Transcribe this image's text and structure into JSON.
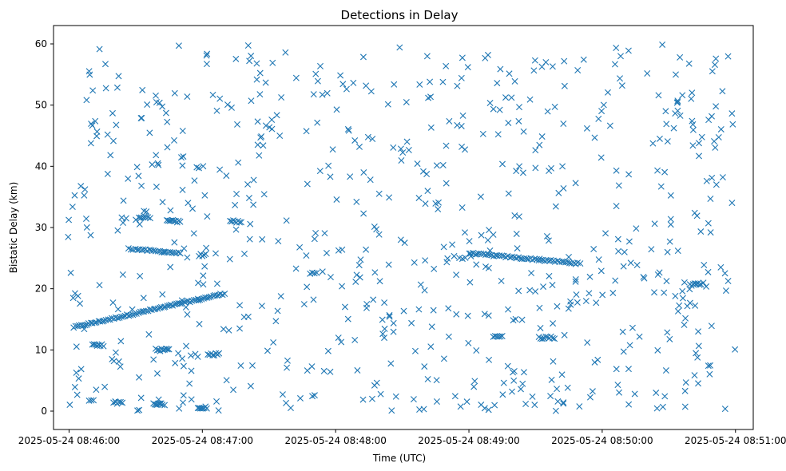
{
  "chart_data": {
    "type": "scatter",
    "title": "Detections in Delay",
    "xlabel": "Time (UTC)",
    "ylabel": "Bistatic Delay (km)",
    "marker": "x",
    "color": "#1f77b4",
    "grid": false,
    "legend": "none",
    "x_start": "2025-05-24 08:46:00",
    "x_end": "2025-05-24 08:51:00",
    "xlim": [
      "2025-05-24 08:45:53",
      "2025-05-24 08:51:08"
    ],
    "ylim": [
      -3,
      63
    ],
    "x_tick_labels": [
      "2025-05-24 08:46:00",
      "2025-05-24 08:47:00",
      "2025-05-24 08:48:00",
      "2025-05-24 08:49:00",
      "2025-05-24 08:50:00",
      "2025-05-24 08:51:00"
    ],
    "y_ticks": [
      0,
      10,
      20,
      30,
      40,
      50,
      60
    ],
    "tracks": [
      {
        "description": "rising track",
        "t_start": "2025-05-24 08:46:02",
        "t_end": "2025-05-24 08:47:10",
        "y_start": 13.7,
        "y_end": 19.2,
        "points": 80
      },
      {
        "description": "falling track",
        "t_start": "2025-05-24 08:46:28",
        "t_end": "2025-05-24 08:46:50",
        "y_start": 26.5,
        "y_end": 25.8,
        "points": 25
      },
      {
        "description": "falling track",
        "t_start": "2025-05-24 08:49:00",
        "t_end": "2025-05-24 08:49:50",
        "y_start": 25.8,
        "y_end": 24.1,
        "points": 55
      }
    ],
    "clusters": [
      {
        "t": "2025-05-24 08:46:47",
        "y": 31.0,
        "points": 10,
        "spread_s": 6
      },
      {
        "t": "2025-05-24 08:47:15",
        "y": 31.0,
        "points": 8,
        "spread_s": 5
      },
      {
        "t": "2025-05-24 08:46:42",
        "y": 10.0,
        "points": 10,
        "spread_s": 6
      },
      {
        "t": "2025-05-24 08:47:05",
        "y": 9.3,
        "points": 8,
        "spread_s": 5
      },
      {
        "t": "2025-05-24 08:46:40",
        "y": 1.2,
        "points": 8,
        "spread_s": 4
      },
      {
        "t": "2025-05-24 08:47:00",
        "y": 0.6,
        "points": 8,
        "spread_s": 4
      },
      {
        "t": "2025-05-24 08:46:22",
        "y": 1.4,
        "points": 6,
        "spread_s": 4
      },
      {
        "t": "2025-05-24 08:46:10",
        "y": 1.9,
        "points": 3,
        "spread_s": 2
      },
      {
        "t": "2025-05-24 08:46:13",
        "y": 10.8,
        "points": 8,
        "spread_s": 5
      },
      {
        "t": "2025-05-24 08:46:34",
        "y": 31.7,
        "points": 6,
        "spread_s": 5
      },
      {
        "t": "2025-05-24 08:47:00",
        "y": 25.5,
        "points": 5,
        "spread_s": 3
      },
      {
        "t": "2025-05-24 08:49:35",
        "y": 12.0,
        "points": 10,
        "spread_s": 7
      },
      {
        "t": "2025-05-24 08:49:13",
        "y": 12.2,
        "points": 6,
        "spread_s": 4
      },
      {
        "t": "2025-05-24 08:50:42",
        "y": 20.7,
        "points": 8,
        "spread_s": 5
      },
      {
        "t": "2025-05-24 08:47:50",
        "y": 22.6,
        "points": 4,
        "spread_s": 3
      }
    ],
    "noise": {
      "count": 700,
      "t_range": [
        "2025-05-24 08:45:59",
        "2025-05-24 08:51:00"
      ],
      "y_range": [
        0,
        60
      ]
    }
  }
}
